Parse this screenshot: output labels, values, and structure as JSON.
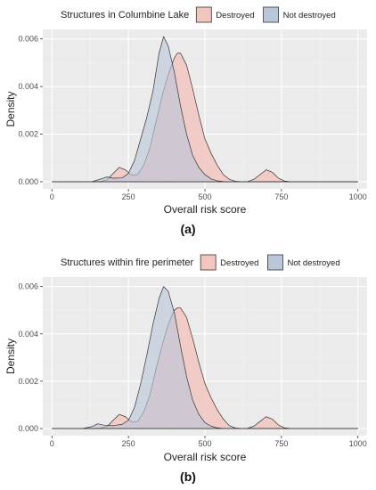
{
  "colors": {
    "panel_bg": "#ebebeb",
    "grid_major": "#ffffff",
    "grid_minor": "#f4f4f4",
    "destroyed_fill": "#f2c6bf",
    "not_destroyed_fill": "#b9c7da",
    "overlap_fill": "#c2b0bf",
    "outline": "#333333",
    "tick_text": "#4d4d4d"
  },
  "chart_data": [
    {
      "type": "area",
      "caption": "(a)",
      "legend_title": "Structures in Columbine Lake",
      "legend_position": "top",
      "xlabel": "Overall risk score",
      "ylabel": "Density",
      "xlim": [
        -30,
        1030
      ],
      "ylim": [
        -0.0003,
        0.0064
      ],
      "xticks": [
        0,
        250,
        500,
        750,
        1000
      ],
      "yticks": [
        0,
        0.002,
        0.004,
        0.006
      ],
      "xtick_labels": [
        "0",
        "250",
        "500",
        "750",
        "1000"
      ],
      "ytick_labels": [
        "0.000",
        "0.002",
        "0.004",
        "0.006"
      ],
      "grid": true,
      "series": [
        {
          "name": "Destroyed",
          "x": [
            0,
            120,
            160,
            180,
            200,
            220,
            240,
            260,
            280,
            300,
            320,
            340,
            360,
            380,
            400,
            410,
            420,
            440,
            460,
            480,
            500,
            520,
            540,
            560,
            580,
            600,
            620,
            640,
            660,
            680,
            700,
            720,
            740,
            760,
            780,
            1000
          ],
          "y": [
            0,
            0,
            2e-05,
            8e-05,
            0.00035,
            0.0006,
            0.0005,
            0.00028,
            0.0003,
            0.0007,
            0.0014,
            0.0025,
            0.0036,
            0.0045,
            0.0052,
            0.0054,
            0.0054,
            0.0049,
            0.0039,
            0.0028,
            0.0018,
            0.0012,
            0.0007,
            0.0003,
            0.0001,
            2e-05,
            0.0,
            1e-05,
            0.0001,
            0.0003,
            0.0005,
            0.0004,
            0.00015,
            3e-05,
            0,
            0
          ]
        },
        {
          "name": "Not destroyed",
          "x": [
            0,
            130,
            160,
            180,
            200,
            230,
            250,
            270,
            290,
            310,
            330,
            350,
            365,
            380,
            400,
            420,
            440,
            460,
            480,
            500,
            520,
            540,
            560,
            580,
            600,
            1000
          ],
          "y": [
            0,
            0,
            0.00012,
            0.0002,
            0.00015,
            0.00016,
            0.00035,
            0.0009,
            0.0018,
            0.0027,
            0.0038,
            0.0054,
            0.0061,
            0.0057,
            0.0046,
            0.0032,
            0.002,
            0.0011,
            0.0006,
            0.0003,
            0.00012,
            4e-05,
            1e-05,
            0,
            0,
            0
          ]
        }
      ]
    },
    {
      "type": "area",
      "caption": "(b)",
      "legend_title": "Structures within fire perimeter",
      "legend_position": "top",
      "xlabel": "Overall risk score",
      "ylabel": "Density",
      "xlim": [
        -30,
        1030
      ],
      "ylim": [
        -0.0003,
        0.0064
      ],
      "xticks": [
        0,
        250,
        500,
        750,
        1000
      ],
      "yticks": [
        0,
        0.002,
        0.004,
        0.006
      ],
      "xtick_labels": [
        "0",
        "250",
        "500",
        "750",
        "1000"
      ],
      "ytick_labels": [
        "0.000",
        "0.002",
        "0.004",
        "0.006"
      ],
      "grid": true,
      "series": [
        {
          "name": "Destroyed",
          "x": [
            0,
            120,
            160,
            180,
            200,
            220,
            240,
            260,
            280,
            300,
            320,
            340,
            360,
            380,
            400,
            410,
            420,
            440,
            460,
            480,
            500,
            520,
            540,
            560,
            580,
            600,
            620,
            640,
            660,
            680,
            700,
            720,
            740,
            760,
            780,
            1000
          ],
          "y": [
            0,
            0,
            2e-05,
            8e-05,
            0.00035,
            0.0006,
            0.0005,
            0.00028,
            0.0003,
            0.0007,
            0.0014,
            0.0025,
            0.0035,
            0.0044,
            0.005,
            0.0051,
            0.0051,
            0.0047,
            0.0038,
            0.0028,
            0.0019,
            0.0013,
            0.0008,
            0.0004,
            0.00012,
            2e-05,
            0.0,
            1e-05,
            0.0001,
            0.0003,
            0.0005,
            0.0004,
            0.00015,
            3e-05,
            0,
            0
          ]
        },
        {
          "name": "Not destroyed",
          "x": [
            0,
            100,
            130,
            150,
            170,
            200,
            230,
            250,
            270,
            290,
            310,
            330,
            350,
            365,
            380,
            400,
            420,
            440,
            460,
            480,
            500,
            520,
            540,
            560,
            600,
            1000
          ],
          "y": [
            0,
            0,
            8e-05,
            0.0002,
            0.00014,
            0.00012,
            0.00018,
            0.00035,
            0.0009,
            0.0019,
            0.0031,
            0.0044,
            0.0055,
            0.006,
            0.0058,
            0.0049,
            0.0035,
            0.0022,
            0.0012,
            0.0006,
            0.00025,
            0.0001,
            3e-05,
            0,
            0,
            0
          ]
        }
      ]
    }
  ]
}
